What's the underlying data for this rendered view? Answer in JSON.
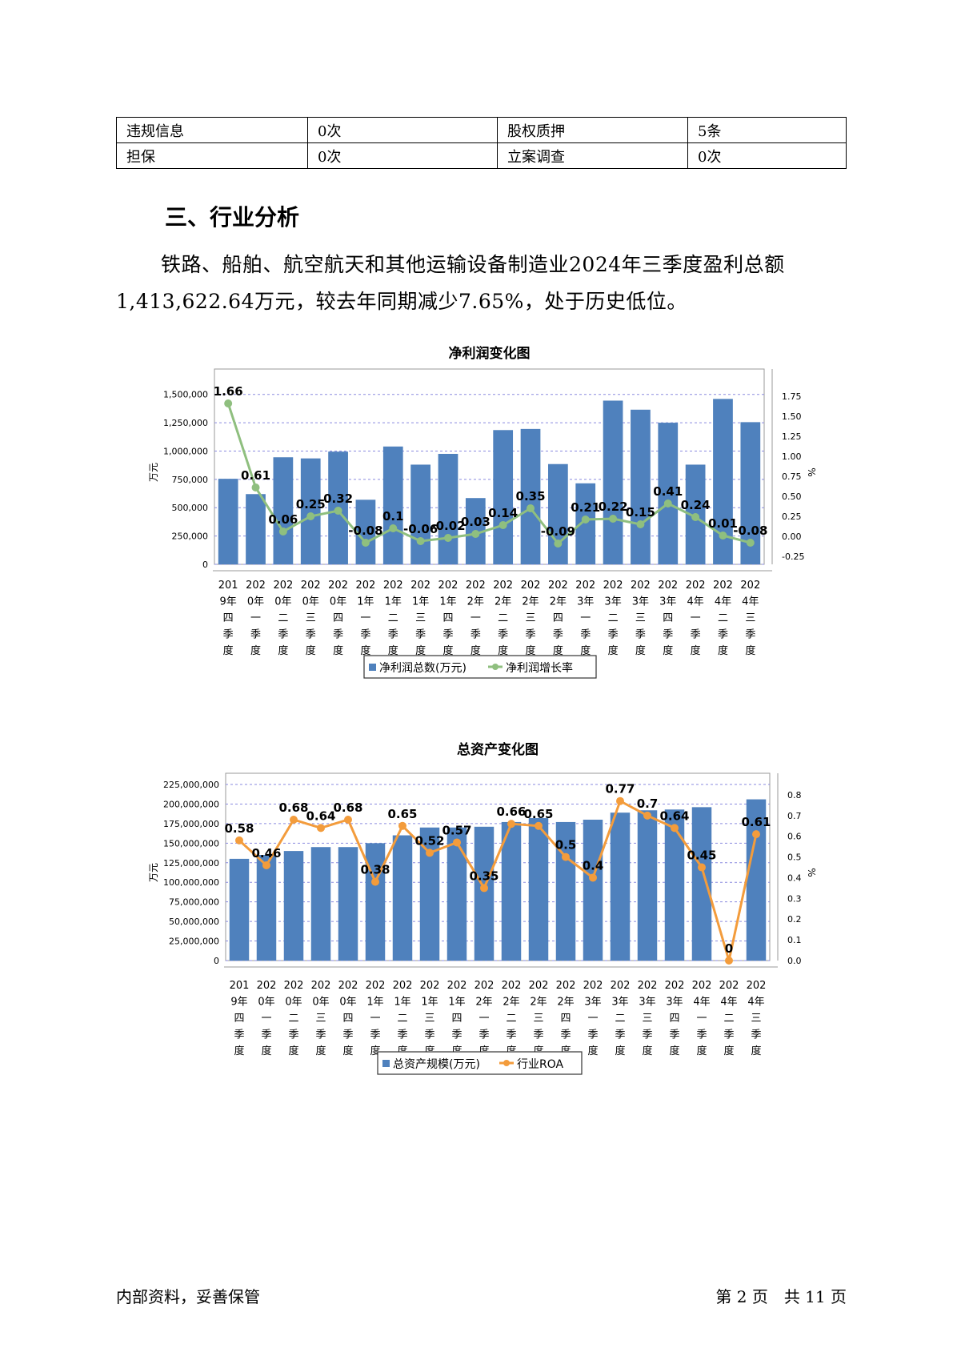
{
  "info_table": {
    "rows": [
      [
        "违规信息",
        "0次",
        "股权质押",
        "5条"
      ],
      [
        "担保",
        "0次",
        "立案调查",
        "0次"
      ]
    ]
  },
  "section": {
    "heading": "三、行业分析",
    "paragraph": "铁路、船舶、航空航天和其他运输设备制造业2024年三季度盈利总额1,413,622.64万元，较去年同期减少7.65%，处于历史低位。"
  },
  "chart_data": [
    {
      "type": "bar",
      "title": "净利润变化图",
      "categories": [
        "2019年四季度",
        "2020年一季度",
        "2020年二季度",
        "2020年三季度",
        "2020年四季度",
        "2021年一季度",
        "2021年二季度",
        "2021年三季度",
        "2021年四季度",
        "2022年一季度",
        "2022年二季度",
        "2022年三季度",
        "2022年四季度",
        "2023年一季度",
        "2023年二季度",
        "2023年三季度",
        "2023年四季度",
        "2024年一季度",
        "2024年二季度",
        "2024年三季度"
      ],
      "ylabel": "万元",
      "y2label": "%",
      "ylim": [
        0,
        1625000
      ],
      "y2lim": [
        -0.35,
        1.95
      ],
      "yticks": [
        0,
        250000,
        500000,
        750000,
        1000000,
        1250000,
        1500000
      ],
      "ytick_labels": [
        "0",
        "250,000",
        "500,000",
        "750,000",
        "1,000,000",
        "1,250,000",
        "1,500,000"
      ],
      "y2ticks": [
        -0.25,
        0.0,
        0.25,
        0.5,
        0.75,
        1.0,
        1.25,
        1.5,
        1.75
      ],
      "y2tick_labels": [
        "-0.25",
        "0.00",
        "0.25",
        "0.50",
        "0.75",
        "1.00",
        "1.25",
        "1.50",
        "1.75"
      ],
      "bar_color": "#4f81bd",
      "line_color": "#8fbf7f",
      "series": [
        {
          "name": "净利润总数(万元)",
          "kind": "bar",
          "axis": "left",
          "values": [
            755000,
            620000,
            945000,
            935000,
            995000,
            570000,
            1040000,
            880000,
            975000,
            585000,
            1185000,
            1195000,
            885000,
            715000,
            1445000,
            1365000,
            1250000,
            880000,
            1460000,
            1255000
          ]
        },
        {
          "name": "净利润增长率",
          "kind": "line",
          "axis": "right",
          "values": [
            1.66,
            0.61,
            0.06,
            0.25,
            0.32,
            -0.08,
            0.1,
            -0.06,
            -0.02,
            0.03,
            0.14,
            0.35,
            -0.09,
            0.21,
            0.22,
            0.15,
            0.41,
            0.24,
            0.01,
            -0.08
          ]
        }
      ],
      "data_labels": [
        "1.66",
        "0.61",
        "0.06",
        "0.25",
        "0.32",
        "-0.08",
        "0.1",
        "-0.06",
        "-0.02",
        "0.03",
        "0.14",
        "0.35",
        "-0.09",
        "0.21",
        "0.22",
        "0.15",
        "0.41",
        "0.24",
        "0.01",
        "-0.08"
      ],
      "legend": "bottom",
      "grid": true
    },
    {
      "type": "bar",
      "title": "总资产变化图",
      "categories": [
        "2019年四季度",
        "2020年一季度",
        "2020年二季度",
        "2020年三季度",
        "2020年四季度",
        "2021年一季度",
        "2021年二季度",
        "2021年三季度",
        "2021年四季度",
        "2022年一季度",
        "2022年二季度",
        "2022年三季度",
        "2022年四季度",
        "2023年一季度",
        "2023年二季度",
        "2023年三季度",
        "2023年四季度",
        "2024年一季度",
        "2024年二季度",
        "2024年三季度"
      ],
      "ylabel": "万元",
      "y2label": "%",
      "ylim": [
        0,
        225000000
      ],
      "y2lim": [
        0,
        0.85
      ],
      "yticks": [
        0,
        25000000,
        50000000,
        75000000,
        100000000,
        125000000,
        150000000,
        175000000,
        200000000,
        225000000
      ],
      "ytick_labels": [
        "0",
        "25,000,000",
        "50,000,000",
        "75,000,000",
        "100,000,000",
        "125,000,000",
        "150,000,000",
        "175,000,000",
        "200,000,000",
        "225,000,000"
      ],
      "y2ticks": [
        0.0,
        0.1,
        0.2,
        0.3,
        0.4,
        0.5,
        0.6,
        0.7,
        0.8
      ],
      "y2tick_labels": [
        "0.0",
        "0.1",
        "0.2",
        "0.3",
        "0.4",
        "0.5",
        "0.6",
        "0.7",
        "0.8"
      ],
      "bar_color": "#4f81bd",
      "line_color": "#f39c3c",
      "series": [
        {
          "name": "总资产规模(万元)",
          "kind": "bar",
          "axis": "left",
          "values": [
            130000000,
            135000000,
            140000000,
            145000000,
            145000000,
            150000000,
            160000000,
            170000000,
            170000000,
            171000000,
            177000000,
            182000000,
            177000000,
            180000000,
            189000000,
            192000000,
            193000000,
            196000000,
            0,
            206000000
          ]
        },
        {
          "name": "行业ROA",
          "kind": "line",
          "axis": "right",
          "values": [
            0.58,
            0.46,
            0.68,
            0.64,
            0.68,
            0.38,
            0.65,
            0.52,
            0.57,
            0.35,
            0.66,
            0.65,
            0.5,
            0.4,
            0.77,
            0.7,
            0.64,
            0.45,
            0,
            0.61
          ]
        }
      ],
      "data_labels": [
        "0.58",
        "0.46",
        "0.68",
        "0.64",
        "0.68",
        "0.38",
        "0.65",
        "0.52",
        "0.57",
        "0.35",
        "0.66",
        "0.65",
        "0.5",
        "0.4",
        "0.77",
        "0.7",
        "0.64",
        "0.45",
        "0",
        "0.61"
      ],
      "legend": "bottom",
      "grid": true
    }
  ],
  "footer": {
    "left": "内部资料，妥善保管",
    "right": "第 2 页　共 11 页"
  }
}
